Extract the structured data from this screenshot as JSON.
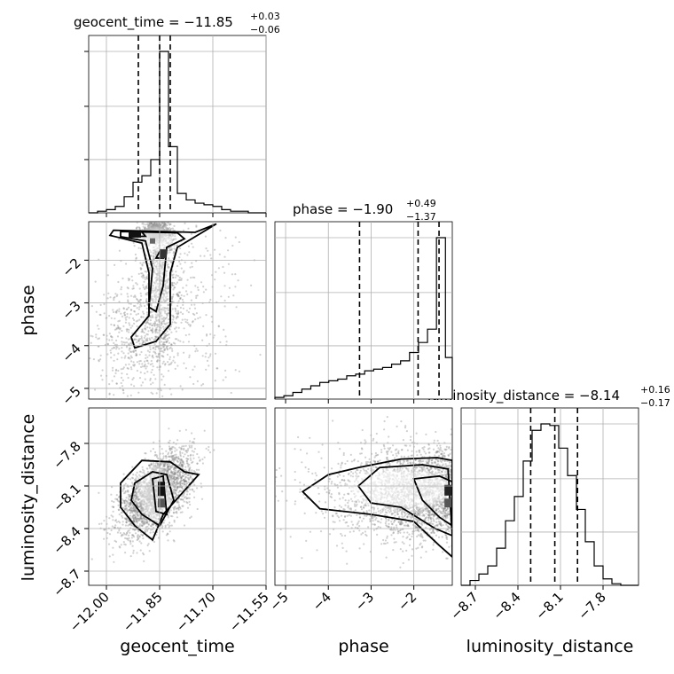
{
  "chart_data": {
    "type": "corner",
    "parameters": [
      "geocent_time",
      "phase",
      "luminosity_distance"
    ],
    "axes": {
      "geocent_time": {
        "label": "geocent_time",
        "range": [
          -12.05,
          -11.55
        ],
        "ticks": [
          -12.0,
          -11.85,
          -11.7,
          -11.55
        ],
        "tick_labels": [
          "−12.00",
          "−11.85",
          "−11.70",
          "−11.55"
        ]
      },
      "phase": {
        "label": "phase",
        "range": [
          -5.25,
          -1.1
        ],
        "ticks": [
          -5,
          -4,
          -3,
          -2
        ],
        "tick_labels": [
          "−5",
          "−4",
          "−3",
          "−2"
        ]
      },
      "luminosity_distance": {
        "label": "luminosity_distance",
        "range": [
          -8.8,
          -7.55
        ],
        "ticks": [
          -8.7,
          -8.4,
          -8.1,
          -7.8
        ],
        "tick_labels": [
          "−8.7",
          "−8.4",
          "−8.1",
          "−7.8"
        ]
      }
    },
    "titles": [
      {
        "param": "geocent_time",
        "text": "geocent_time = −11.85",
        "plus": "+0.03",
        "minus": "−0.06"
      },
      {
        "param": "phase",
        "text": "phase = −1.90",
        "plus": "+0.49",
        "minus": "−1.37"
      },
      {
        "param": "luminosity_distance",
        "text": "luminosity_distance = −8.14",
        "plus": "+0.16",
        "minus": "−0.17"
      }
    ],
    "histograms": {
      "geocent_time": {
        "bin_edges": [
          -12.05,
          -12.025,
          -12.0,
          -11.975,
          -11.95,
          -11.925,
          -11.9,
          -11.875,
          -11.85,
          -11.825,
          -11.8,
          -11.775,
          -11.75,
          -11.725,
          -11.7,
          -11.675,
          -11.65,
          -11.625,
          -11.6,
          -11.575,
          -11.55
        ],
        "counts": [
          0,
          1,
          2,
          4,
          10,
          19,
          23,
          33,
          100,
          41,
          12,
          8,
          6,
          5,
          4,
          2,
          1,
          1,
          0,
          0
        ],
        "quantiles": [
          -11.91,
          -11.85,
          -11.82
        ]
      },
      "phase": {
        "bin_edges": [
          -5.25,
          -5.04,
          -4.83,
          -4.62,
          -4.41,
          -4.2,
          -3.99,
          -3.78,
          -3.57,
          -3.36,
          -3.15,
          -2.94,
          -2.73,
          -2.52,
          -2.31,
          -2.1,
          -1.89,
          -1.68,
          -1.47,
          -1.26,
          -1.1
        ],
        "counts": [
          1,
          2,
          4,
          6,
          8,
          10,
          11,
          12,
          14,
          15,
          17,
          18,
          19,
          21,
          23,
          28,
          34,
          42,
          97,
          25
        ],
        "quantiles": [
          -3.27,
          -1.9,
          -1.41
        ]
      },
      "luminosity_distance": {
        "bin_edges": [
          -8.8,
          -8.7375,
          -8.675,
          -8.6125,
          -8.55,
          -8.4875,
          -8.425,
          -8.3625,
          -8.3,
          -8.2375,
          -8.175,
          -8.1125,
          -8.05,
          -7.9875,
          -7.925,
          -7.8625,
          -7.8,
          -7.7375,
          -7.675,
          -7.6125,
          -7.55
        ],
        "counts": [
          0,
          3,
          7,
          12,
          23,
          40,
          55,
          77,
          96,
          100,
          99,
          85,
          68,
          47,
          27,
          12,
          4,
          1,
          0,
          0
        ],
        "quantiles": [
          -8.31,
          -8.14,
          -7.98
        ]
      }
    },
    "grid": true,
    "quantile_line_style": "dashed"
  }
}
